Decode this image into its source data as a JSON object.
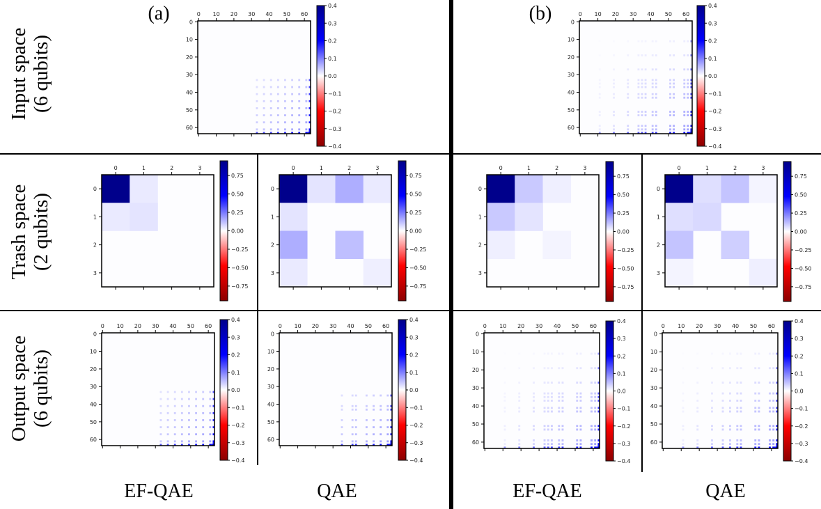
{
  "panel_labels": [
    "(a)",
    "(b)"
  ],
  "row_labels": [
    {
      "line1": "Input space",
      "line2": "(6 qubits)"
    },
    {
      "line1": "Trash space",
      "line2": "(2 qubits)"
    },
    {
      "line1": "Output space",
      "line2": "(6 qubits)"
    }
  ],
  "column_labels": [
    "EF-QAE",
    "QAE",
    "EF-QAE",
    "QAE"
  ],
  "colors": {
    "negative": "#8b0000",
    "mid_negative": "#ff0000",
    "zero": "#ffffff",
    "mid_positive": "#0000ff",
    "positive": "#00008b",
    "separator": "#000000"
  },
  "chart_data": [
    {
      "type": "heatmap",
      "panel": "(a)",
      "row": "Input space (6 qubits)",
      "size": 64,
      "x_ticks": [
        "0",
        "10",
        "20",
        "30",
        "40",
        "50",
        "60"
      ],
      "y_ticks": [
        "0",
        "10",
        "20",
        "30",
        "40",
        "50",
        "60"
      ],
      "colorbar": {
        "range": [
          -0.4,
          0.4
        ],
        "ticks": [
          "0.4",
          "0.3",
          "0.2",
          "0.1",
          "0.0",
          "−0.1",
          "−0.2",
          "−0.3",
          "−0.4"
        ]
      },
      "features": {
        "max": 0.4,
        "dense_cols": [
          33,
          37,
          41,
          45,
          49,
          53,
          57,
          61,
          63
        ],
        "dense_rows": [
          33,
          37,
          41,
          45,
          49,
          53,
          57,
          61,
          63
        ]
      }
    },
    {
      "type": "heatmap",
      "panel": "(b)",
      "row": "Input space (6 qubits)",
      "size": 64,
      "x_ticks": [
        "0",
        "10",
        "20",
        "30",
        "40",
        "50",
        "60"
      ],
      "y_ticks": [
        "0",
        "10",
        "20",
        "30",
        "40",
        "50",
        "60"
      ],
      "colorbar": {
        "range": [
          -0.4,
          0.4
        ],
        "ticks": [
          "0.4",
          "0.3",
          "0.2",
          "0.1",
          "0.0",
          "−0.1",
          "−0.2",
          "−0.3",
          "−0.4"
        ]
      },
      "features": {
        "max": 0.4,
        "dense_cols": [
          11,
          19,
          27,
          33,
          35,
          37,
          41,
          43,
          51,
          53,
          59,
          61,
          63
        ],
        "dense_rows": [
          11,
          19,
          27,
          33,
          35,
          37,
          41,
          43,
          51,
          53,
          59,
          61,
          63
        ]
      }
    },
    {
      "type": "heatmap",
      "panel": "(a)",
      "column": "EF-QAE",
      "row": "Trash space (2 qubits)",
      "size": 4,
      "x_ticks": [
        "0",
        "1",
        "2",
        "3"
      ],
      "y_ticks": [
        "0",
        "1",
        "2",
        "3"
      ],
      "colorbar": {
        "range": [
          -0.95,
          0.95
        ],
        "ticks": [
          "0.75",
          "0.50",
          "0.25",
          "0.00",
          "−0.25",
          "−0.50",
          "−0.75"
        ]
      },
      "values": [
        [
          0.95,
          0.04,
          0,
          0
        ],
        [
          0.04,
          0.05,
          0,
          0
        ],
        [
          0,
          0,
          0,
          0
        ],
        [
          0,
          0,
          0,
          0
        ]
      ]
    },
    {
      "type": "heatmap",
      "panel": "(a)",
      "column": "QAE",
      "row": "Trash space (2 qubits)",
      "size": 4,
      "x_ticks": [
        "0",
        "1",
        "2",
        "3"
      ],
      "y_ticks": [
        "0",
        "1",
        "2",
        "3"
      ],
      "colorbar": {
        "range": [
          -0.95,
          0.95
        ],
        "ticks": [
          "0.75",
          "0.50",
          "0.25",
          "0.00",
          "−0.25",
          "−0.50",
          "−0.75"
        ]
      },
      "values": [
        [
          0.95,
          0.05,
          0.15,
          0.04
        ],
        [
          0.05,
          0,
          0,
          0
        ],
        [
          0.15,
          0,
          0.12,
          0
        ],
        [
          0.04,
          0,
          0,
          0.03
        ]
      ]
    },
    {
      "type": "heatmap",
      "panel": "(b)",
      "column": "EF-QAE",
      "row": "Trash space (2 qubits)",
      "size": 4,
      "x_ticks": [
        "0",
        "1",
        "2",
        "3"
      ],
      "y_ticks": [
        "0",
        "1",
        "2",
        "3"
      ],
      "colorbar": {
        "range": [
          -0.95,
          0.95
        ],
        "ticks": [
          "0.75",
          "0.50",
          "0.25",
          "0.00",
          "−0.25",
          "−0.50",
          "−0.75"
        ]
      },
      "values": [
        [
          0.95,
          0.1,
          0.03,
          0
        ],
        [
          0.1,
          0.05,
          0,
          0
        ],
        [
          0.03,
          0,
          0.02,
          0
        ],
        [
          0,
          0,
          0,
          0
        ]
      ]
    },
    {
      "type": "heatmap",
      "panel": "(b)",
      "column": "QAE",
      "row": "Trash space (2 qubits)",
      "size": 4,
      "x_ticks": [
        "0",
        "1",
        "2",
        "3"
      ],
      "y_ticks": [
        "0",
        "1",
        "2",
        "3"
      ],
      "colorbar": {
        "range": [
          -0.95,
          0.95
        ],
        "ticks": [
          "0.75",
          "0.50",
          "0.25",
          "0.00",
          "−0.25",
          "−0.50",
          "−0.75"
        ]
      },
      "values": [
        [
          0.95,
          0.06,
          0.11,
          0.02
        ],
        [
          0.06,
          0.07,
          0,
          0
        ],
        [
          0.11,
          0,
          0.09,
          0
        ],
        [
          0.02,
          0,
          0,
          0.03
        ]
      ]
    },
    {
      "type": "heatmap",
      "panel": "(a)",
      "column": "EF-QAE",
      "row": "Output space (6 qubits)",
      "size": 64,
      "x_ticks": [
        "0",
        "10",
        "20",
        "30",
        "40",
        "50",
        "60"
      ],
      "y_ticks": [
        "0",
        "10",
        "20",
        "30",
        "40",
        "50",
        "60"
      ],
      "colorbar": {
        "range": [
          -0.4,
          0.4
        ],
        "ticks": [
          "0.4",
          "0.3",
          "0.2",
          "0.1",
          "0.0",
          "−0.1",
          "−0.2",
          "−0.3",
          "−0.4"
        ]
      },
      "features": {
        "max": 0.4,
        "dense_cols": [
          33,
          37,
          41,
          45,
          49,
          53,
          57,
          61,
          63
        ],
        "dense_rows": [
          33,
          37,
          41,
          45,
          49,
          53,
          57,
          61,
          63
        ]
      }
    },
    {
      "type": "heatmap",
      "panel": "(a)",
      "column": "QAE",
      "row": "Output space (6 qubits)",
      "size": 64,
      "x_ticks": [
        "0",
        "10",
        "20",
        "30",
        "40",
        "50",
        "60"
      ],
      "y_ticks": [
        "0",
        "10",
        "20",
        "30",
        "40",
        "50",
        "60"
      ],
      "colorbar": {
        "range": [
          -0.4,
          0.4
        ],
        "ticks": [
          "0.4",
          "0.3",
          "0.2",
          "0.1",
          "0.0",
          "−0.1",
          "−0.2",
          "−0.3",
          "−0.4"
        ]
      },
      "features": {
        "max": 0.4,
        "dense_cols": [
          35,
          41,
          43,
          49,
          53,
          57,
          61,
          63
        ],
        "dense_rows": [
          35,
          41,
          43,
          49,
          53,
          57,
          61,
          63
        ]
      }
    },
    {
      "type": "heatmap",
      "panel": "(b)",
      "column": "EF-QAE",
      "row": "Output space (6 qubits)",
      "size": 64,
      "x_ticks": [
        "0",
        "10",
        "20",
        "30",
        "40",
        "50",
        "60"
      ],
      "y_ticks": [
        "0",
        "10",
        "20",
        "30",
        "40",
        "50",
        "60"
      ],
      "colorbar": {
        "range": [
          -0.4,
          0.4
        ],
        "ticks": [
          "0.4",
          "0.3",
          "0.2",
          "0.1",
          "0.0",
          "−0.1",
          "−0.2",
          "−0.3",
          "−0.4"
        ]
      },
      "features": {
        "max": 0.4,
        "dense_cols": [
          11,
          19,
          27,
          33,
          35,
          37,
          41,
          43,
          51,
          53,
          59,
          61,
          63
        ],
        "dense_rows": [
          11,
          19,
          27,
          33,
          35,
          37,
          41,
          43,
          51,
          53,
          59,
          61,
          63
        ]
      }
    },
    {
      "type": "heatmap",
      "panel": "(b)",
      "column": "QAE",
      "row": "Output space (6 qubits)",
      "size": 64,
      "x_ticks": [
        "0",
        "10",
        "20",
        "30",
        "40",
        "50",
        "60"
      ],
      "y_ticks": [
        "0",
        "10",
        "20",
        "30",
        "40",
        "50",
        "60"
      ],
      "colorbar": {
        "range": [
          -0.4,
          0.4
        ],
        "ticks": [
          "0.4",
          "0.3",
          "0.2",
          "0.1",
          "0.0",
          "−0.1",
          "−0.2",
          "−0.3",
          "−0.4"
        ]
      },
      "features": {
        "max": 0.4,
        "dense_cols": [
          11,
          19,
          27,
          33,
          37,
          41,
          43,
          51,
          53,
          59,
          61,
          63
        ],
        "dense_rows": [
          11,
          19,
          27,
          33,
          37,
          41,
          43,
          51,
          53,
          59,
          61,
          63
        ]
      }
    }
  ]
}
